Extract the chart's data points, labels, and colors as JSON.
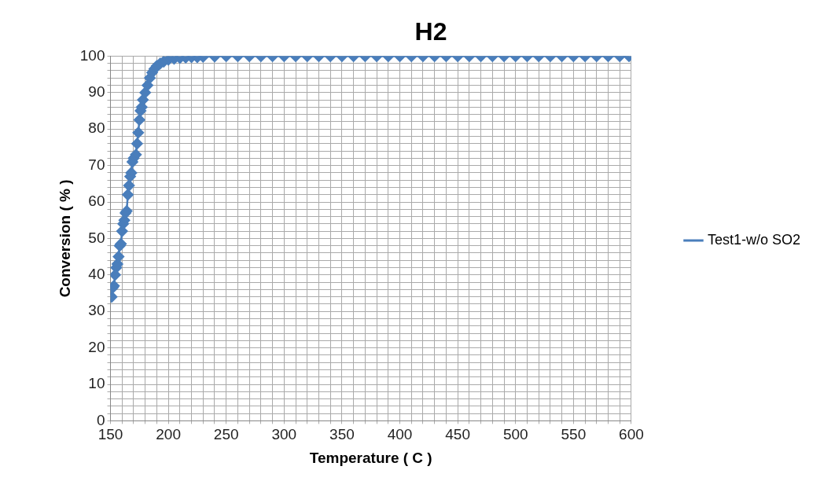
{
  "chart_data": {
    "type": "line",
    "title": "H2",
    "xlabel": "Temperature ( C )",
    "ylabel": "Conversion ( % )",
    "legend": "right",
    "marker": "diamond",
    "line_style": "solid",
    "grid": true,
    "xlim": [
      150,
      600
    ],
    "ylim": [
      0,
      100
    ],
    "xticks": [
      150,
      {
        "value": 160,
        "label": null
      },
      {
        "value": 170,
        "label": null
      },
      {
        "value": 180,
        "label": null
      },
      {
        "value": 190,
        "label": null
      },
      200,
      {
        "value": 210,
        "label": null
      },
      {
        "value": 220,
        "label": null
      },
      {
        "value": 230,
        "label": null
      },
      {
        "value": 240,
        "label": null
      },
      250,
      {
        "value": 260,
        "label": null
      },
      {
        "value": 270,
        "label": null
      },
      {
        "value": 280,
        "label": null
      },
      {
        "value": 290,
        "label": null
      },
      300,
      {
        "value": 310,
        "label": null
      },
      {
        "value": 320,
        "label": null
      },
      {
        "value": 330,
        "label": null
      },
      {
        "value": 340,
        "label": null
      },
      350,
      {
        "value": 360,
        "label": null
      },
      {
        "value": 370,
        "label": null
      },
      {
        "value": 380,
        "label": null
      },
      {
        "value": 390,
        "label": null
      },
      400,
      {
        "value": 410,
        "label": null
      },
      {
        "value": 420,
        "label": null
      },
      {
        "value": 430,
        "label": null
      },
      {
        "value": 440,
        "label": null
      },
      450,
      {
        "value": 460,
        "label": null
      },
      {
        "value": 470,
        "label": null
      },
      {
        "value": 480,
        "label": null
      },
      {
        "value": 490,
        "label": null
      },
      500,
      {
        "value": 510,
        "label": null
      },
      {
        "value": 520,
        "label": null
      },
      {
        "value": 530,
        "label": null
      },
      {
        "value": 540,
        "label": null
      },
      550,
      {
        "value": 560,
        "label": null
      },
      {
        "value": 570,
        "label": null
      },
      {
        "value": 580,
        "label": null
      },
      {
        "value": 590,
        "label": null
      },
      600
    ],
    "yticks": [
      0,
      {
        "value": 2,
        "label": null
      },
      {
        "value": 4,
        "label": null
      },
      {
        "value": 6,
        "label": null
      },
      {
        "value": 8,
        "label": null
      },
      10,
      {
        "value": 12,
        "label": null
      },
      {
        "value": 14,
        "label": null
      },
      {
        "value": 16,
        "label": null
      },
      {
        "value": 18,
        "label": null
      },
      20,
      {
        "value": 22,
        "label": null
      },
      {
        "value": 24,
        "label": null
      },
      {
        "value": 26,
        "label": null
      },
      {
        "value": 28,
        "label": null
      },
      30,
      {
        "value": 32,
        "label": null
      },
      {
        "value": 34,
        "label": null
      },
      {
        "value": 36,
        "label": null
      },
      {
        "value": 38,
        "label": null
      },
      40,
      {
        "value": 42,
        "label": null
      },
      {
        "value": 44,
        "label": null
      },
      {
        "value": 46,
        "label": null
      },
      {
        "value": 48,
        "label": null
      },
      50,
      {
        "value": 52,
        "label": null
      },
      {
        "value": 54,
        "label": null
      },
      {
        "value": 56,
        "label": null
      },
      {
        "value": 58,
        "label": null
      },
      60,
      {
        "value": 62,
        "label": null
      },
      {
        "value": 64,
        "label": null
      },
      {
        "value": 66,
        "label": null
      },
      {
        "value": 68,
        "label": null
      },
      70,
      {
        "value": 72,
        "label": null
      },
      {
        "value": 74,
        "label": null
      },
      {
        "value": 76,
        "label": null
      },
      {
        "value": 78,
        "label": null
      },
      80,
      {
        "value": 82,
        "label": null
      },
      {
        "value": 84,
        "label": null
      },
      {
        "value": 86,
        "label": null
      },
      {
        "value": 88,
        "label": null
      },
      90,
      {
        "value": 92,
        "label": null
      },
      {
        "value": 94,
        "label": null
      },
      {
        "value": 96,
        "label": null
      },
      {
        "value": 98,
        "label": null
      },
      100
    ],
    "series": [
      {
        "name": "Test1-w/o SO2",
        "color": "#4a7ebb",
        "x": [
          151,
          152,
          153,
          154,
          155,
          156,
          157,
          158,
          159,
          160,
          161,
          162,
          163,
          164,
          165,
          166,
          167,
          168,
          169,
          170,
          172,
          173,
          174,
          175,
          176,
          177,
          178,
          180,
          182,
          184,
          186,
          188,
          190,
          193,
          196,
          200,
          205,
          210,
          215,
          220,
          225,
          230,
          240,
          250,
          260,
          270,
          280,
          290,
          300,
          310,
          320,
          330,
          340,
          350,
          360,
          370,
          380,
          390,
          400,
          410,
          420,
          430,
          440,
          450,
          460,
          470,
          480,
          490,
          500,
          510,
          520,
          530,
          540,
          550,
          560,
          570,
          580,
          590,
          598
        ],
        "values": [
          34,
          36.5,
          37,
          40,
          42,
          43,
          45,
          48,
          48.5,
          52,
          54,
          55,
          57,
          57.5,
          62,
          64.5,
          67,
          68,
          71,
          72,
          73,
          76,
          79,
          82.5,
          85,
          86,
          88,
          90,
          92,
          94,
          95.5,
          96.5,
          97.3,
          98,
          98.5,
          99,
          99.3,
          99.5,
          99.6,
          99.7,
          99.7,
          99.8,
          99.9,
          100,
          100,
          100,
          100,
          100,
          100,
          100,
          100,
          100,
          100,
          100,
          100,
          100,
          100,
          100,
          100,
          100,
          100,
          100,
          100,
          100,
          100,
          100,
          100,
          100,
          100,
          100,
          100,
          100,
          100,
          100,
          100,
          100,
          100,
          100,
          100
        ]
      }
    ]
  }
}
